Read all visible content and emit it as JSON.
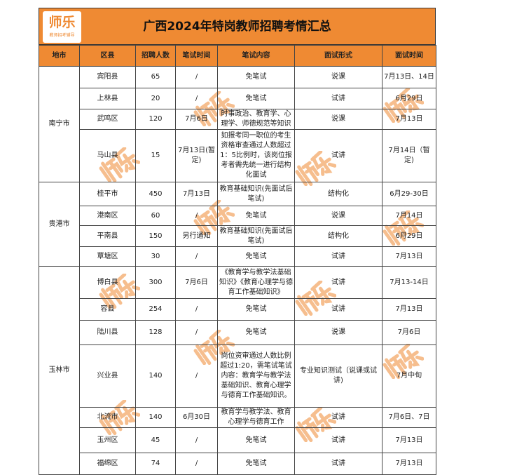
{
  "logo": {
    "name": "师乐",
    "tagline": "教师招考辅导"
  },
  "title": "广西2024年特岗教师招聘考情汇总",
  "headers": [
    "地市",
    "区县",
    "招聘人数",
    "笔试时间",
    "笔试内容",
    "面试形式",
    "面试时间"
  ],
  "rows": [
    {
      "city": "南宁市",
      "county": "宾阳县",
      "count": "65",
      "written_time": "/",
      "written_content": "免笔试",
      "interview_form": "说课",
      "interview_time": "7月13日、14日"
    },
    {
      "county": "上林县",
      "count": "20",
      "written_time": "/",
      "written_content": "免笔试",
      "interview_form": "试讲",
      "interview_time": "6月29日"
    },
    {
      "county": "武鸣区",
      "count": "120",
      "written_time": "7月6日",
      "written_content": "时事政治、教育学、心理学、师德规范等知识",
      "interview_form": "说课",
      "interview_time": "7月13日"
    },
    {
      "county": "马山县",
      "count": "15",
      "written_time": "7月13日(暂定)",
      "written_content": "如报考同一职位的考生资格审查通过人数超过1：5比例时，该岗位报考者需先统一进行结构化面试",
      "interview_form": "试讲",
      "interview_time": "7月14日（暂定)"
    },
    {
      "city": "贵港市",
      "county": "桂平市",
      "count": "450",
      "written_time": "7月13日",
      "written_content": "教育基础知识(先面试后笔试)",
      "interview_form": "结构化",
      "interview_time": "6月29-30日"
    },
    {
      "county": "港南区",
      "count": "60",
      "written_time": "/",
      "written_content": "免笔试",
      "interview_form": "说课",
      "interview_time": "7月14日"
    },
    {
      "county": "平南县",
      "count": "150",
      "written_time": "另行通知",
      "written_content": "教育基础知识(先面试后笔试)",
      "interview_form": "结构化",
      "interview_time": "6月29日"
    },
    {
      "county": "覃塘区",
      "count": "30",
      "written_time": "/",
      "written_content": "免笔试",
      "interview_form": "试讲",
      "interview_time": "7月13日"
    },
    {
      "city": "玉林市",
      "county": "博白县",
      "count": "300",
      "written_time": "7月6日",
      "written_content": "《教育学与教学法基础知识》《教育心理学与德育工作基础知识》",
      "interview_form": "试讲",
      "interview_time": "7月13-14日"
    },
    {
      "county": "容县",
      "count": "254",
      "written_time": "/",
      "written_content": "免笔试",
      "interview_form": "试讲",
      "interview_time": "7月13日"
    },
    {
      "county": "陆川县",
      "count": "128",
      "written_time": "/",
      "written_content": "免笔试",
      "interview_form": "说课",
      "interview_time": "7月6日"
    },
    {
      "county": "兴业县",
      "count": "140",
      "written_time": "/",
      "written_content": "岗位资审通过人数比例超过1:20，需笔试笔试内容：教育学与教学法基础知识、教育心理学与德育工作基础知识。",
      "interview_form": "专业知识测试（说课或试讲)",
      "interview_time": "7月中旬"
    },
    {
      "county": "北流市",
      "count": "140",
      "written_time": "6月30日",
      "written_content": "教育学与教学法、教育心理学与德育工作",
      "interview_form": "试讲",
      "interview_time": "7月6日、7日"
    },
    {
      "county": "玉州区",
      "count": "45",
      "written_time": "/",
      "written_content": "免笔试",
      "interview_form": "试讲",
      "interview_time": "7月13日"
    },
    {
      "county": "福绵区",
      "count": "74",
      "written_time": "/",
      "written_content": "免笔试",
      "interview_form": "试讲",
      "interview_time": "7月13日"
    }
  ],
  "watermark": "师乐",
  "colors": {
    "accent": "#ef8a33"
  }
}
